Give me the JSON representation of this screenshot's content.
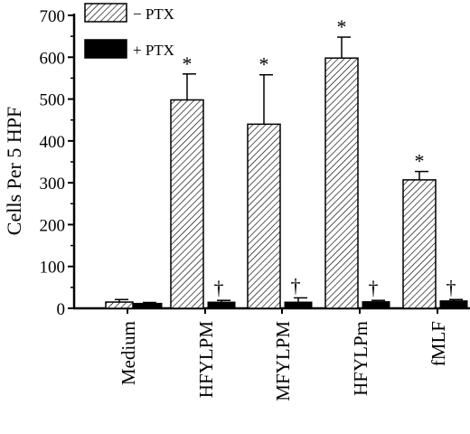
{
  "chart_data": {
    "type": "bar",
    "title": "",
    "xlabel": "",
    "ylabel": "Cells Per 5 HPF",
    "ylim": [
      0,
      700
    ],
    "yticks": [
      0,
      100,
      200,
      300,
      400,
      500,
      600,
      700
    ],
    "categories": [
      "Medium",
      "HFYLPM",
      "MFYLPM",
      "HFYLPm",
      "fMLF"
    ],
    "series": [
      {
        "name": "− PTX",
        "pattern": "hatched",
        "values": [
          15,
          498,
          440,
          598,
          307
        ],
        "errors": [
          6,
          62,
          118,
          50,
          20
        ],
        "markers": [
          "",
          "*",
          "*",
          "*",
          "*"
        ]
      },
      {
        "name": "+ PTX",
        "pattern": "solid",
        "values": [
          12,
          15,
          15,
          16,
          18
        ],
        "errors": [
          2,
          4,
          10,
          3,
          3
        ],
        "markers": [
          "",
          "†",
          "†",
          "†",
          "†"
        ]
      }
    ],
    "grid": false,
    "legend_position": "top-left",
    "colors": {
      "bar_outline": "#000000",
      "solid_fill": "#000000",
      "hatch": "#000000",
      "background": "#ffffff"
    }
  }
}
